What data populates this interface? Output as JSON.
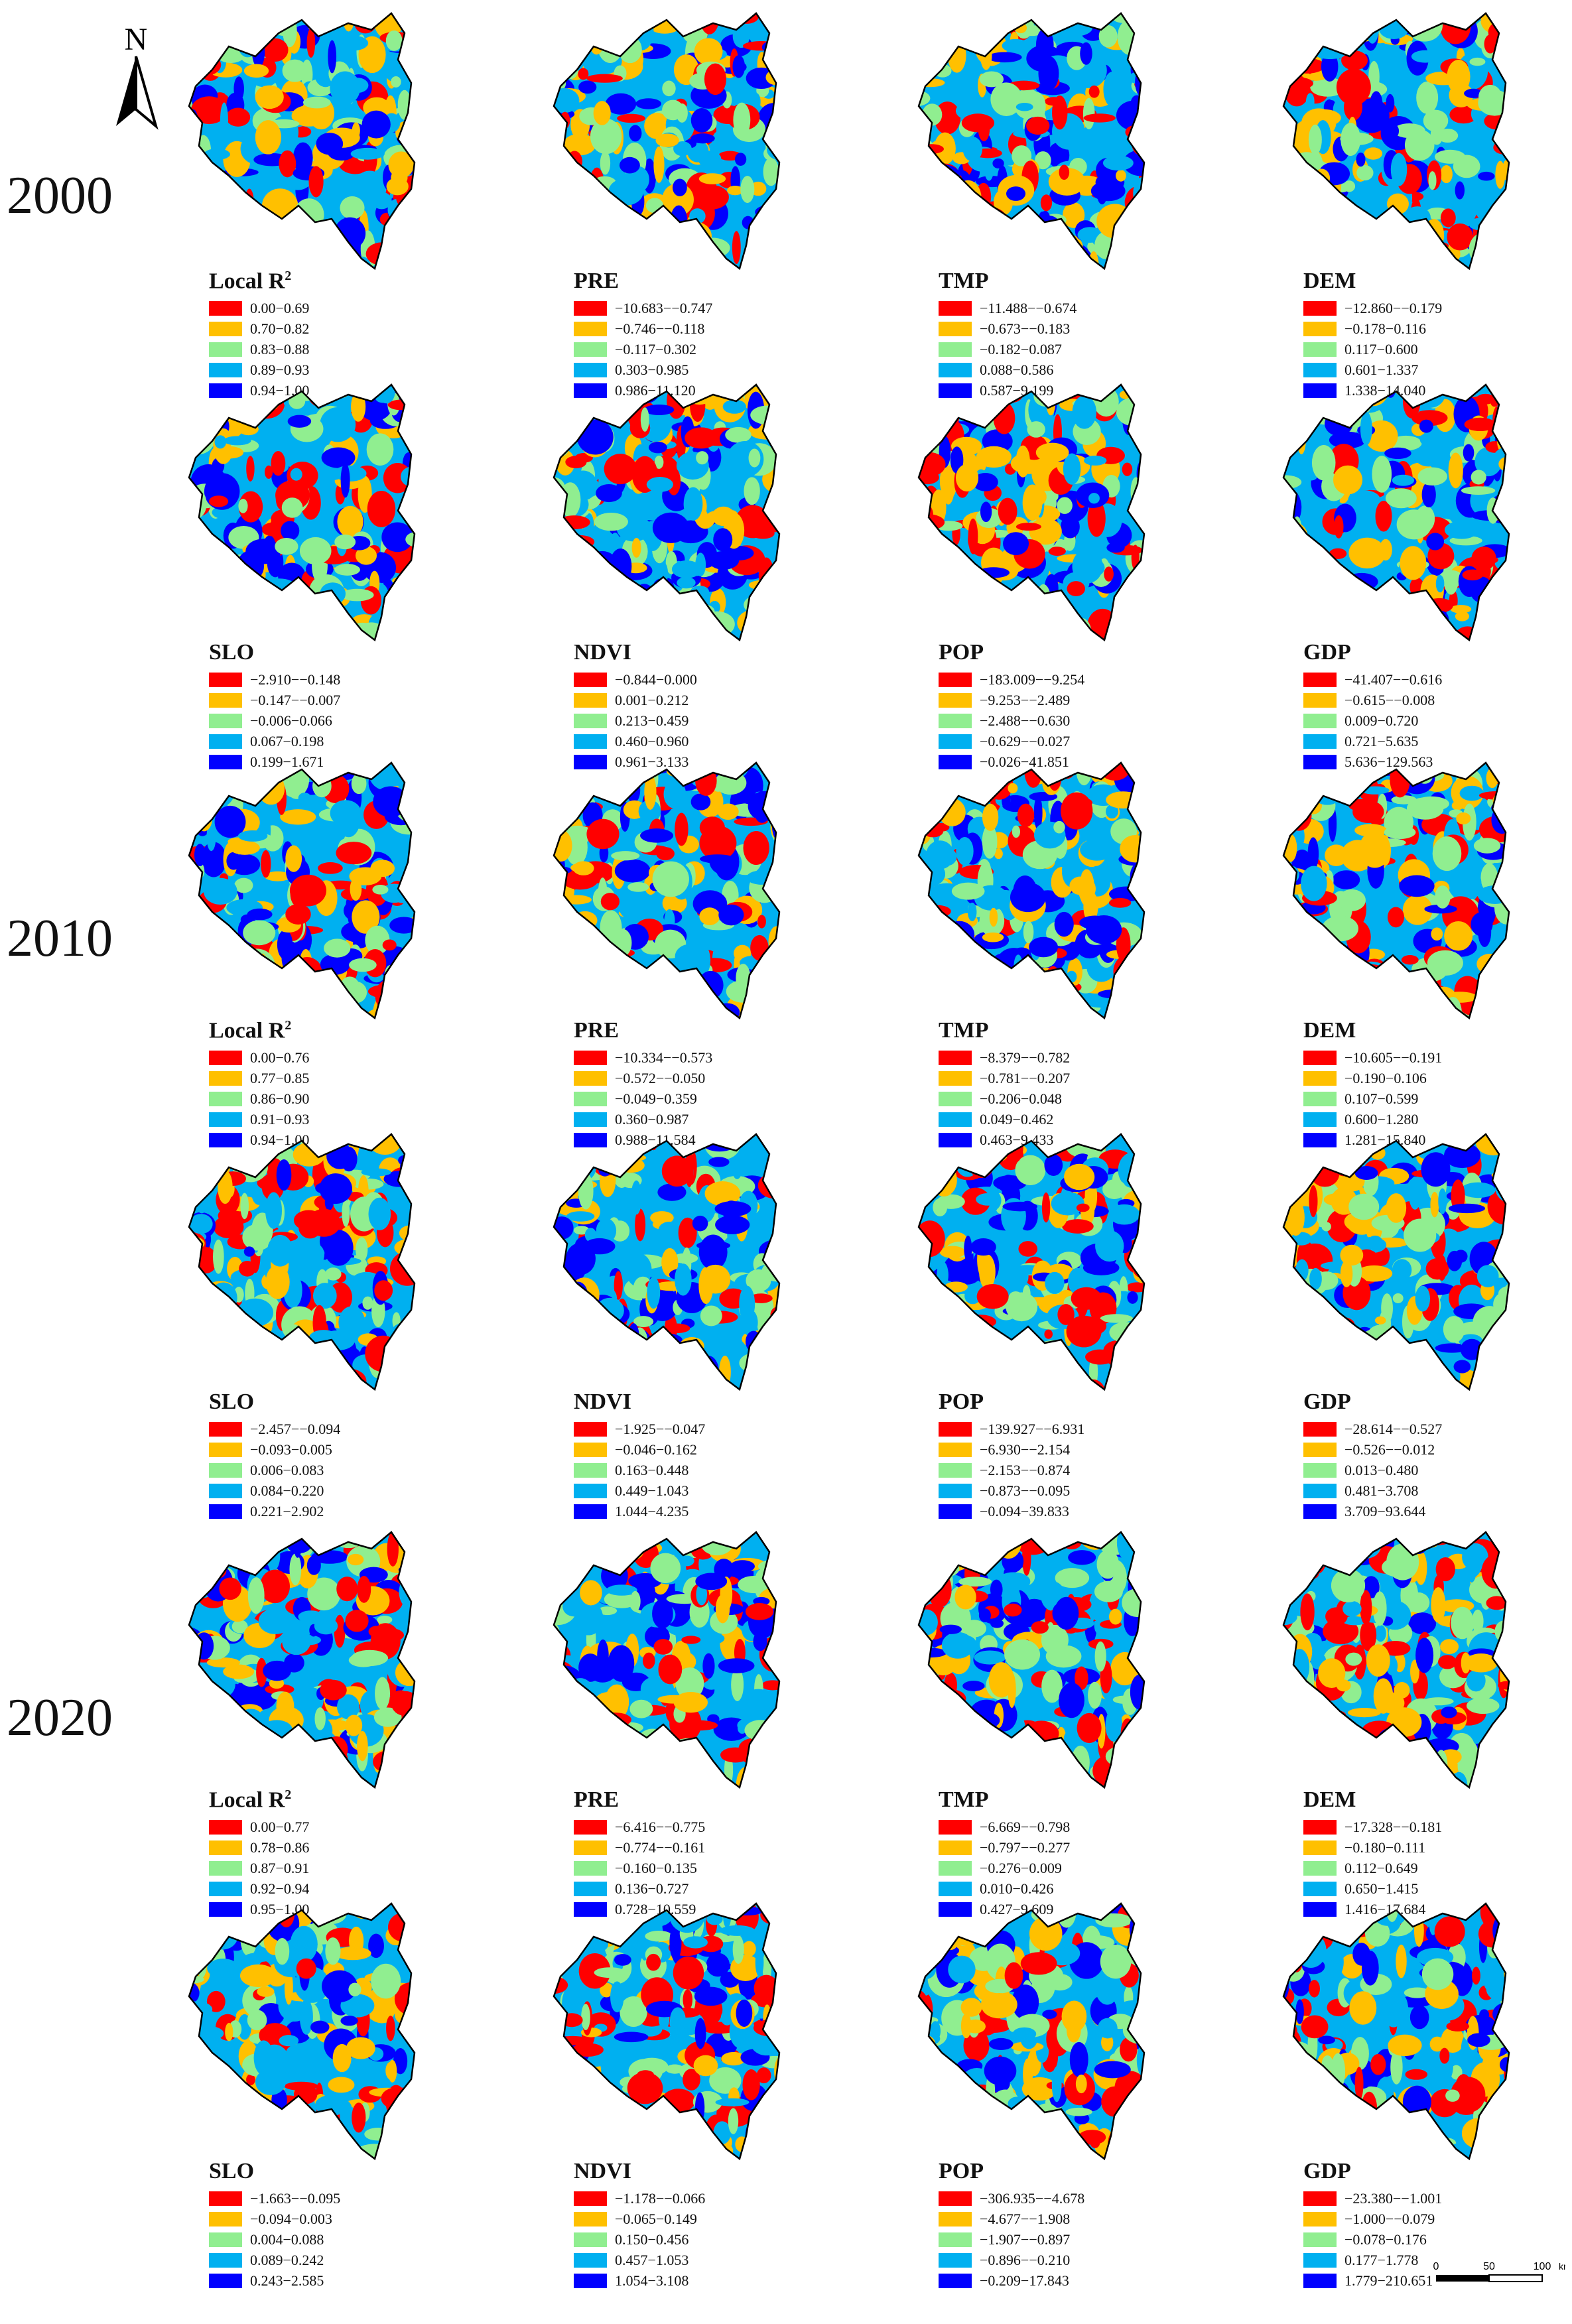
{
  "north_label": "N",
  "scale": {
    "ticks": [
      "0",
      "50",
      "100"
    ],
    "unit": "km"
  },
  "colors": {
    "c1": "#ff0000",
    "c2": "#ffc000",
    "c3": "#90ee90",
    "c4": "#00b0f0",
    "c5": "#0000ff"
  },
  "years": [
    {
      "label": "2000",
      "panels": [
        {
          "title": "Local R",
          "sup": "2",
          "ranges": [
            "0.00−0.69",
            "0.70−0.82",
            "0.83−0.88",
            "0.89−0.93",
            "0.94−1.00"
          ]
        },
        {
          "title": "PRE",
          "sup": "",
          "ranges": [
            "−10.683−−0.747",
            "−0.746−−0.118",
            "−0.117−0.302",
            "0.303−0.985",
            "0.986−11.120"
          ]
        },
        {
          "title": "TMP",
          "sup": "",
          "ranges": [
            "−11.488−−0.674",
            "−0.673−−0.183",
            "−0.182−0.087",
            "0.088−0.586",
            "0.587−9.199"
          ]
        },
        {
          "title": "DEM",
          "sup": "",
          "ranges": [
            "−12.860−−0.179",
            "−0.178−0.116",
            "0.117−0.600",
            "0.601−1.337",
            "1.338−14.040"
          ]
        },
        {
          "title": "SLO",
          "sup": "",
          "ranges": [
            "−2.910−−0.148",
            "−0.147−−0.007",
            "−0.006−0.066",
            "0.067−0.198",
            "0.199−1.671"
          ]
        },
        {
          "title": "NDVI",
          "sup": "",
          "ranges": [
            "−0.844−0.000",
            "0.001−0.212",
            "0.213−0.459",
            "0.460−0.960",
            "0.961−3.133"
          ]
        },
        {
          "title": "POP",
          "sup": "",
          "ranges": [
            "−183.009−−9.254",
            "−9.253−−2.489",
            "−2.488−−0.630",
            "−0.629−−0.027",
            "−0.026−41.851"
          ]
        },
        {
          "title": "GDP",
          "sup": "",
          "ranges": [
            "−41.407−−0.616",
            "−0.615−−0.008",
            "0.009−0.720",
            "0.721−5.635",
            "5.636−129.563"
          ]
        }
      ]
    },
    {
      "label": "2010",
      "panels": [
        {
          "title": "Local R",
          "sup": "2",
          "ranges": [
            "0.00−0.76",
            "0.77−0.85",
            "0.86−0.90",
            "0.91−0.93",
            "0.94−1.00"
          ]
        },
        {
          "title": "PRE",
          "sup": "",
          "ranges": [
            "−10.334−−0.573",
            "−0.572−−0.050",
            "−0.049−0.359",
            "0.360−0.987",
            "0.988−11.584"
          ]
        },
        {
          "title": "TMP",
          "sup": "",
          "ranges": [
            "−8.379−−0.782",
            "−0.781−−0.207",
            "−0.206−0.048",
            "0.049−0.462",
            "0.463−9.433"
          ]
        },
        {
          "title": "DEM",
          "sup": "",
          "ranges": [
            "−10.605−−0.191",
            "−0.190−0.106",
            "0.107−0.599",
            "0.600−1.280",
            "1.281−15.840"
          ]
        },
        {
          "title": "SLO",
          "sup": "",
          "ranges": [
            "−2.457−−0.094",
            "−0.093−0.005",
            "0.006−0.083",
            "0.084−0.220",
            "0.221−2.902"
          ]
        },
        {
          "title": "NDVI",
          "sup": "",
          "ranges": [
            "−1.925−−0.047",
            "−0.046−0.162",
            "0.163−0.448",
            "0.449−1.043",
            "1.044−4.235"
          ]
        },
        {
          "title": "POP",
          "sup": "",
          "ranges": [
            "−139.927−−6.931",
            "−6.930−−2.154",
            "−2.153−−0.874",
            "−0.873−−0.095",
            "−0.094−39.833"
          ]
        },
        {
          "title": "GDP",
          "sup": "",
          "ranges": [
            "−28.614−−0.527",
            "−0.526−−0.012",
            "0.013−0.480",
            "0.481−3.708",
            "3.709−93.644"
          ]
        }
      ]
    },
    {
      "label": "2020",
      "panels": [
        {
          "title": "Local R",
          "sup": "2",
          "ranges": [
            "0.00−0.77",
            "0.78−0.86",
            "0.87−0.91",
            "0.92−0.94",
            "0.95−1.00"
          ]
        },
        {
          "title": "PRE",
          "sup": "",
          "ranges": [
            "−6.416−−0.775",
            "−0.774−−0.161",
            "−0.160−0.135",
            "0.136−0.727",
            "0.728−10.559"
          ]
        },
        {
          "title": "TMP",
          "sup": "",
          "ranges": [
            "−6.669−−0.798",
            "−0.797−−0.277",
            "−0.276−0.009",
            "0.010−0.426",
            "0.427−9.609"
          ]
        },
        {
          "title": "DEM",
          "sup": "",
          "ranges": [
            "−17.328−−0.181",
            "−0.180−0.111",
            "0.112−0.649",
            "0.650−1.415",
            "1.416−17.684"
          ]
        },
        {
          "title": "SLO",
          "sup": "",
          "ranges": [
            "−1.663−−0.095",
            "−0.094−0.003",
            "0.004−0.088",
            "0.089−0.242",
            "0.243−2.585"
          ]
        },
        {
          "title": "NDVI",
          "sup": "",
          "ranges": [
            "−1.178−−0.066",
            "−0.065−0.149",
            "0.150−0.456",
            "0.457−1.053",
            "1.054−3.108"
          ]
        },
        {
          "title": "POP",
          "sup": "",
          "ranges": [
            "−306.935−−4.678",
            "−4.677−−1.908",
            "−1.907−−0.897",
            "−0.896−−0.210",
            "−0.209−17.843"
          ]
        },
        {
          "title": "GDP",
          "sup": "",
          "ranges": [
            "−23.380−−1.001",
            "−1.000−−0.079",
            "−0.078−0.176",
            "0.177−1.778",
            "1.779−210.651"
          ]
        }
      ]
    }
  ]
}
